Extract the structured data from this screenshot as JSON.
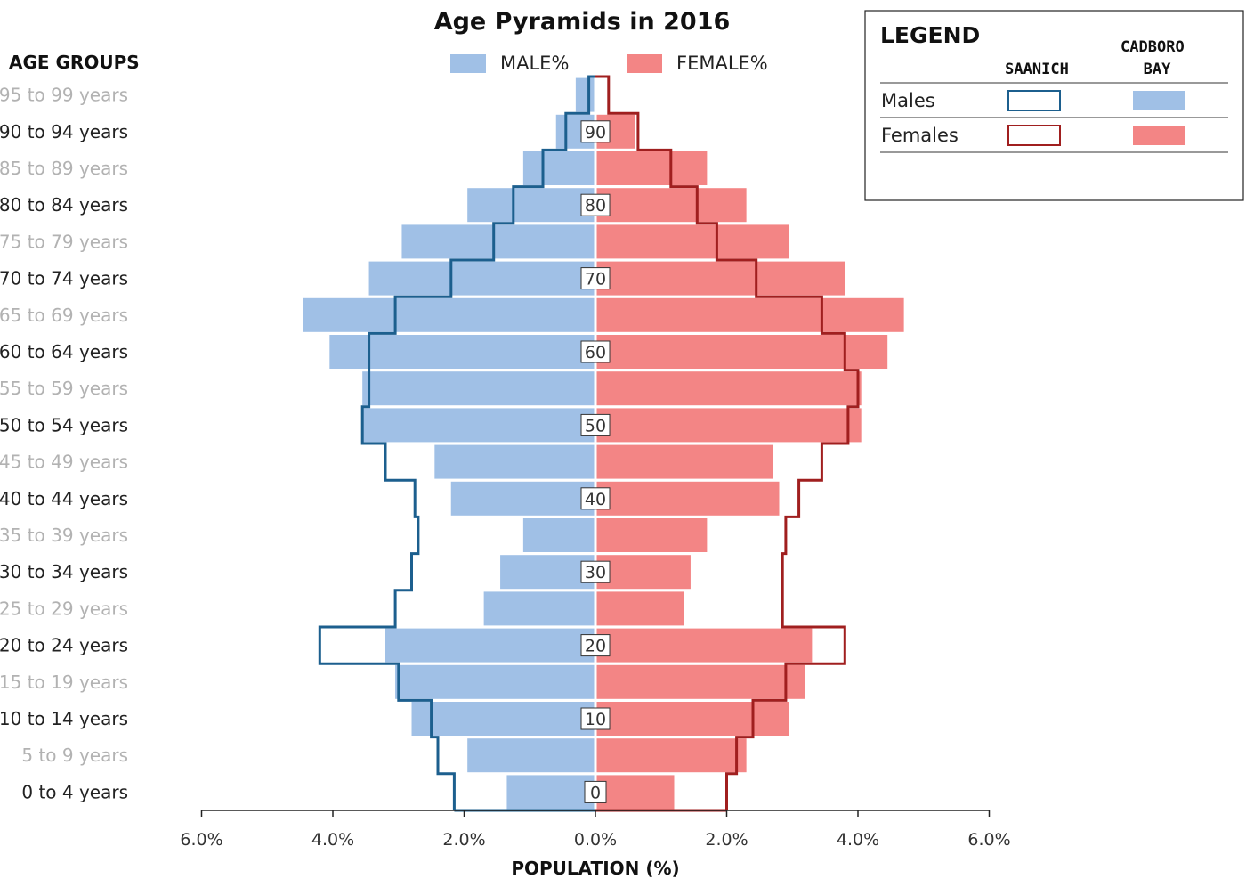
{
  "chart_data": {
    "type": "bar",
    "title": "Age Pyramids in 2016",
    "xlabel": "POPULATION (%)",
    "ylabel": "AGE GROUPS",
    "xlim": [
      -6,
      6
    ],
    "x_ticks": [
      "6.0%",
      "4.0%",
      "2.0%",
      "0.0%",
      "2.0%",
      "4.0%",
      "6.0%"
    ],
    "x_tick_values": [
      -6,
      -4,
      -2,
      0,
      2,
      4,
      6
    ],
    "legend_top": [
      "MALE%",
      "FEMALE%"
    ],
    "legend_box": {
      "heading": "LEGEND",
      "columns": [
        "SAANICH",
        "CADBORO BAY"
      ],
      "rows": [
        "Males",
        "Females"
      ]
    },
    "categories": [
      "0 to 4 years",
      "5 to 9 years",
      "10 to 14 years",
      "15 to 19 years",
      "20 to 24 years",
      "25 to 29 years",
      "30 to 34 years",
      "35 to 39 years",
      "40 to 44 years",
      "45 to 49 years",
      "50 to 54 years",
      "55 to 59 years",
      "60 to 64 years",
      "65 to 69 years",
      "70 to 74 years",
      "75 to 79 years",
      "80 to 84 years",
      "85 to 89 years",
      "90 to 94 years",
      "95 to 99 years"
    ],
    "center_labels": [
      "0",
      "10",
      "20",
      "30",
      "40",
      "50",
      "60",
      "70",
      "80",
      "90"
    ],
    "series": [
      {
        "name": "Cadboro Bay Males",
        "values": [
          1.35,
          1.95,
          2.8,
          3.05,
          3.2,
          1.7,
          1.45,
          1.1,
          2.2,
          2.45,
          3.55,
          3.55,
          4.05,
          4.45,
          3.45,
          2.95,
          1.95,
          1.1,
          0.6,
          0.3
        ]
      },
      {
        "name": "Cadboro Bay Females",
        "values": [
          1.2,
          2.3,
          2.95,
          3.2,
          3.3,
          1.35,
          1.45,
          1.7,
          2.8,
          2.7,
          4.05,
          4.05,
          4.45,
          4.7,
          3.8,
          2.95,
          2.3,
          1.7,
          0.6,
          0.0
        ]
      },
      {
        "name": "Saanich Males",
        "values": [
          2.15,
          2.4,
          2.5,
          3.0,
          4.2,
          3.05,
          2.8,
          2.7,
          2.75,
          3.2,
          3.55,
          3.45,
          3.45,
          3.05,
          2.2,
          1.55,
          1.25,
          0.8,
          0.45,
          0.1
        ]
      },
      {
        "name": "Saanich Females",
        "values": [
          2.0,
          2.15,
          2.4,
          2.9,
          3.8,
          2.85,
          2.85,
          2.9,
          3.1,
          3.45,
          3.85,
          4.0,
          3.8,
          3.45,
          2.45,
          1.85,
          1.55,
          1.15,
          0.65,
          0.2
        ]
      }
    ],
    "colors": {
      "cadboro_male": "#a0c0e6",
      "cadboro_female": "#f38585",
      "saanich_male": "#1c5f8e",
      "saanich_female": "#a01f1f",
      "label_strong": "#222222",
      "label_faint": "#b2b2b2"
    }
  }
}
